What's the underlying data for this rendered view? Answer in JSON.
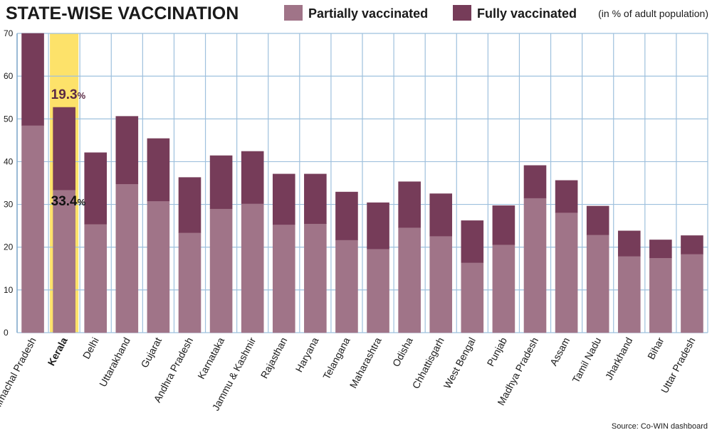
{
  "chart_data": {
    "type": "bar",
    "stacked": true,
    "title": "STATE-WISE VACCINATION",
    "unit_note": "(in % of adult population)",
    "source": "Source: Co-WIN dashboard",
    "ylim": [
      0,
      70
    ],
    "yticks": [
      "0",
      "10",
      "20",
      "30",
      "40",
      "50",
      "60",
      "70"
    ],
    "legend_position": "top-right",
    "grid": true,
    "categories": [
      "Himachal Pradesh",
      "Kerala",
      "Delhi",
      "Uttarakhand",
      "Gujarat",
      "Andhra Pradesh",
      "Karnataka",
      "Jammu & Kashmir",
      "Rajasthan",
      "Haryana",
      "Telangana",
      "Maharashtra",
      "Odisha",
      "Chhattisgarh",
      "West Bengal",
      "Punjab",
      "Madhya Pradesh",
      "Assam",
      "Tamil Nadu",
      "Jharkhand",
      "Bihar",
      "Uttar Pradesh"
    ],
    "highlight": "Kerala",
    "series": [
      {
        "name": "Partially vaccinated",
        "color": "#a07488",
        "values": [
          48.5,
          33.4,
          25.4,
          34.8,
          30.8,
          23.4,
          29.0,
          30.2,
          25.3,
          25.5,
          21.7,
          19.6,
          24.6,
          22.6,
          16.4,
          20.6,
          31.5,
          28.1,
          22.9,
          17.9,
          17.5,
          18.4
        ]
      },
      {
        "name": "Fully vaccinated",
        "color": "#763c59",
        "values": [
          21.5,
          19.3,
          16.7,
          15.8,
          14.6,
          12.9,
          12.4,
          12.2,
          11.8,
          11.6,
          11.2,
          10.8,
          10.7,
          9.9,
          9.8,
          9.1,
          7.6,
          7.5,
          6.7,
          5.9,
          4.2,
          4.3
        ]
      }
    ],
    "annotations": [
      {
        "category": "Kerala",
        "series": "Fully vaccinated",
        "text": "19.3",
        "suffix": "%"
      },
      {
        "category": "Kerala",
        "series": "Partially vaccinated",
        "text": "33.4",
        "suffix": "%"
      }
    ]
  },
  "colors": {
    "highlight_bg": "#fde26a",
    "grid": "#9ec0dd",
    "fully_label": "#5a2a44"
  }
}
